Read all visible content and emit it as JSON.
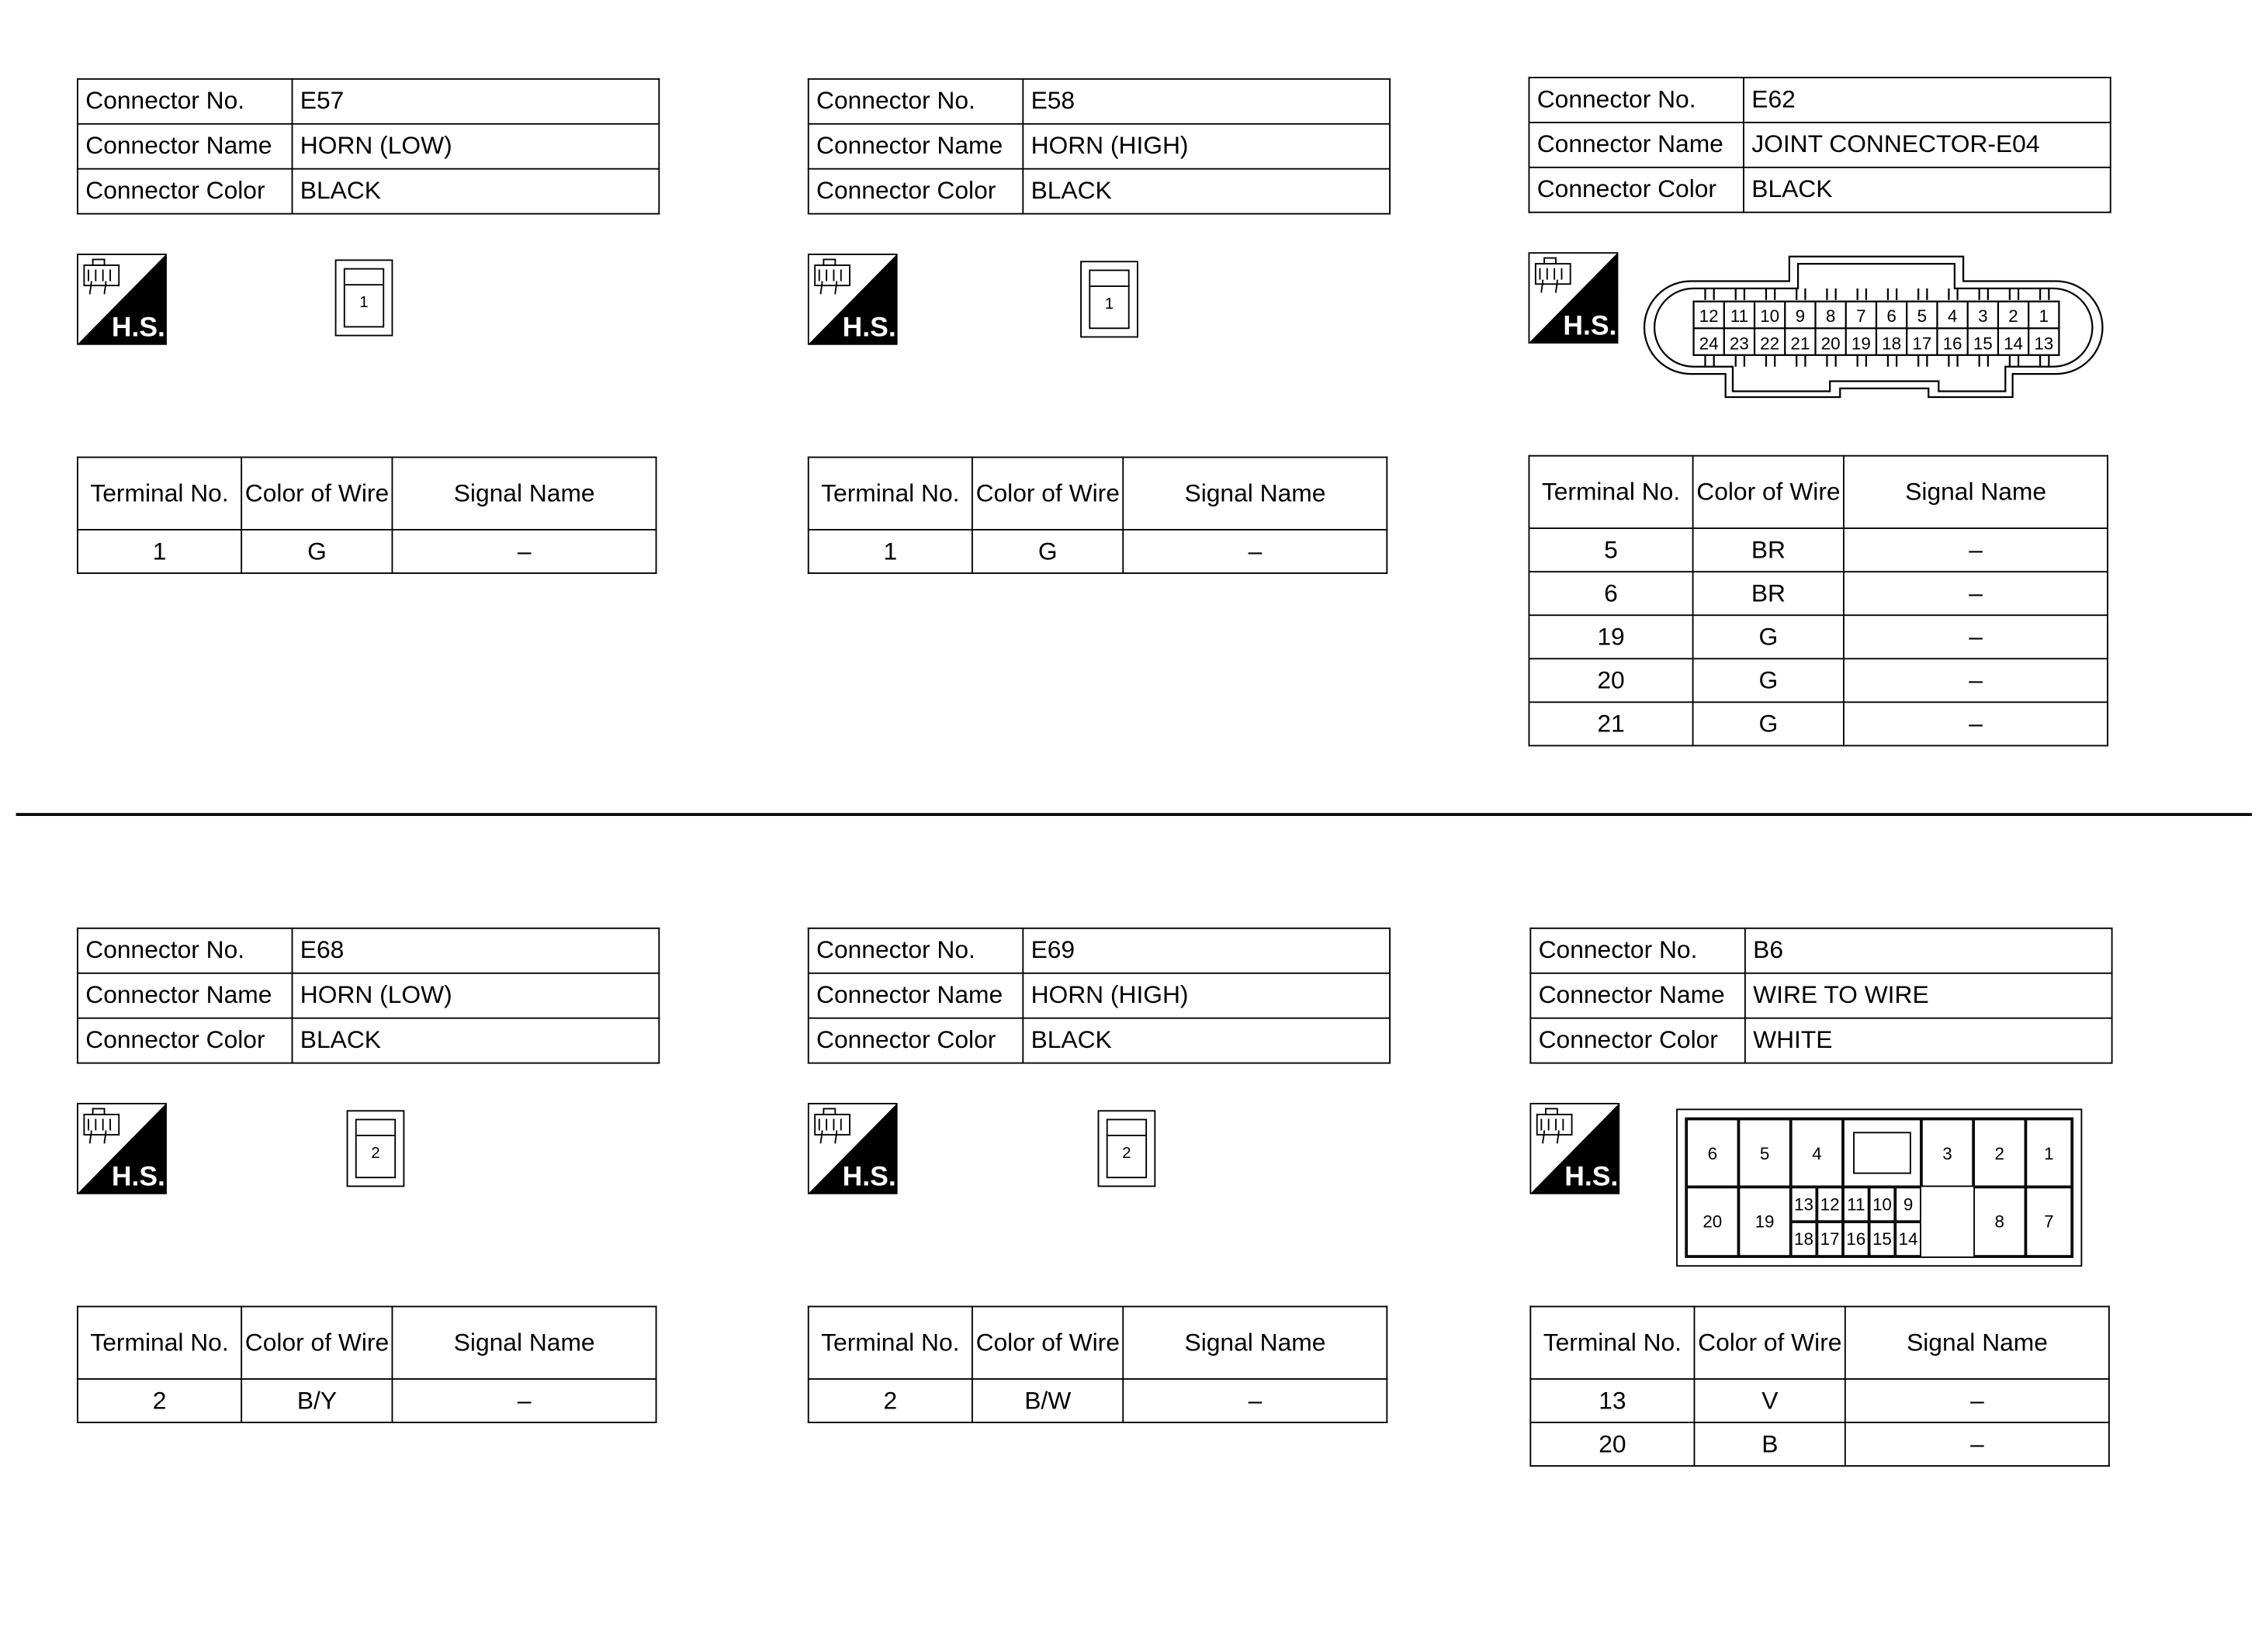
{
  "labels": {
    "connector_no": "Connector No.",
    "connector_name": "Connector Name",
    "connector_color": "Connector Color",
    "terminal_no": "Terminal No.",
    "color_of_wire": "Color of Wire",
    "signal_name": "Signal Name",
    "hs_badge": "H.S."
  },
  "connectors": [
    {
      "no": "E57",
      "name": "HORN (LOW)",
      "color": "BLACK",
      "connector_type": "single",
      "pins": [
        "1"
      ],
      "terminals": [
        {
          "no": "1",
          "wire": "G",
          "signal": "–"
        }
      ]
    },
    {
      "no": "E58",
      "name": "HORN (HIGH)",
      "color": "BLACK",
      "connector_type": "single",
      "pins": [
        "1"
      ],
      "terminals": [
        {
          "no": "1",
          "wire": "G",
          "signal": "–"
        }
      ]
    },
    {
      "no": "E62",
      "name": "JOINT CONNECTOR-E04",
      "color": "BLACK",
      "connector_type": "24-pin",
      "pins_top": [
        "12",
        "11",
        "10",
        "9",
        "8",
        "7",
        "6",
        "5",
        "4",
        "3",
        "2",
        "1"
      ],
      "pins_bottom": [
        "24",
        "23",
        "22",
        "21",
        "20",
        "19",
        "18",
        "17",
        "16",
        "15",
        "14",
        "13"
      ],
      "terminals": [
        {
          "no": "5",
          "wire": "BR",
          "signal": "–"
        },
        {
          "no": "6",
          "wire": "BR",
          "signal": "–"
        },
        {
          "no": "19",
          "wire": "G",
          "signal": "–"
        },
        {
          "no": "20",
          "wire": "G",
          "signal": "–"
        },
        {
          "no": "21",
          "wire": "G",
          "signal": "–"
        }
      ]
    },
    {
      "no": "E68",
      "name": "HORN (LOW)",
      "color": "BLACK",
      "connector_type": "single",
      "pins": [
        "2"
      ],
      "terminals": [
        {
          "no": "2",
          "wire": "B/Y",
          "signal": "–"
        }
      ]
    },
    {
      "no": "E69",
      "name": "HORN (HIGH)",
      "color": "BLACK",
      "connector_type": "single",
      "pins": [
        "2"
      ],
      "terminals": [
        {
          "no": "2",
          "wire": "B/W",
          "signal": "–"
        }
      ]
    },
    {
      "no": "B6",
      "name": "WIRE TO WIRE",
      "color": "WHITE",
      "connector_type": "20-pin",
      "pins": [
        "6",
        "5",
        "4",
        "3",
        "2",
        "1",
        "20",
        "19",
        "13",
        "12",
        "11",
        "10",
        "9",
        "18",
        "17",
        "16",
        "15",
        "14",
        "8",
        "7"
      ],
      "terminals": [
        {
          "no": "13",
          "wire": "V",
          "signal": "–"
        },
        {
          "no": "20",
          "wire": "B",
          "signal": "–"
        }
      ]
    }
  ]
}
